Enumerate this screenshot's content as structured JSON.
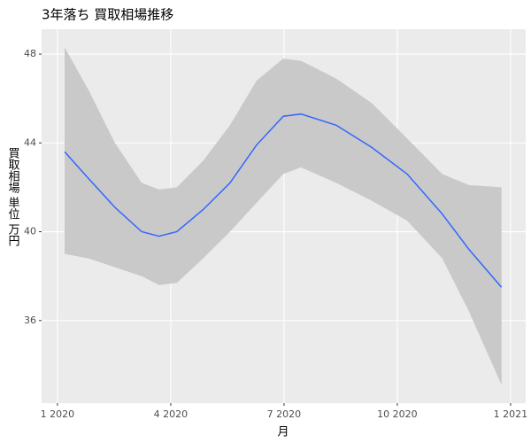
{
  "chart_data": {
    "type": "line",
    "title": "3年落ち 買取相場推移",
    "xlabel": "月",
    "ylabel": "買取相場 単位 万円",
    "x": [
      0.19,
      0.82,
      1.52,
      2.23,
      2.69,
      3.16,
      3.86,
      4.57,
      5.27,
      5.98,
      6.45,
      7.38,
      8.32,
      9.26,
      10.19,
      10.9,
      11.76
    ],
    "values": [
      43.6,
      42.4,
      41.1,
      40.0,
      39.8,
      40.0,
      41.0,
      42.2,
      43.9,
      45.2,
      45.3,
      44.8,
      43.8,
      42.6,
      40.8,
      39.2,
      37.5
    ],
    "upper": [
      48.3,
      46.4,
      44.0,
      42.2,
      41.9,
      42.0,
      43.2,
      44.8,
      46.8,
      47.8,
      47.7,
      46.9,
      45.8,
      44.2,
      42.6,
      42.1,
      42.0
    ],
    "lower": [
      39.0,
      38.8,
      38.4,
      38.0,
      37.6,
      37.7,
      38.8,
      40.0,
      41.3,
      42.6,
      42.9,
      42.2,
      41.4,
      40.5,
      38.8,
      36.4,
      33.1
    ],
    "color": "#3366FF",
    "band_color": "#C9C9C9",
    "xlim": [
      -0.42,
      12.4
    ],
    "ylim": [
      32.28,
      49.12
    ],
    "xticks": [
      {
        "value": 0,
        "label": "1 2020"
      },
      {
        "value": 3,
        "label": "4 2020"
      },
      {
        "value": 6,
        "label": "7 2020"
      },
      {
        "value": 9,
        "label": "10 2020"
      },
      {
        "value": 12,
        "label": "1 2021"
      }
    ],
    "yticks": [
      36,
      40,
      44,
      48
    ],
    "grid": true
  }
}
